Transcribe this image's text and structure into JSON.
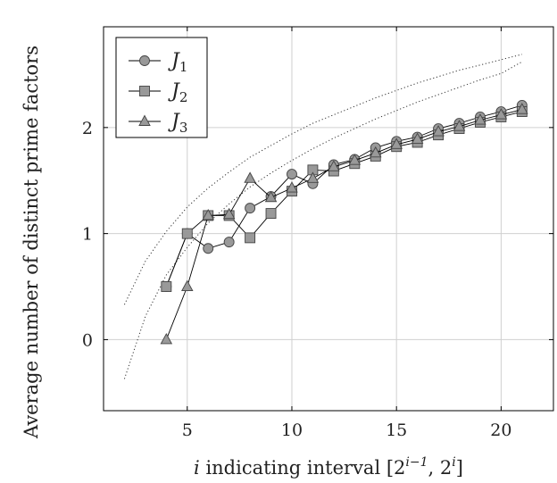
{
  "chart_data": {
    "type": "line",
    "xlabel": {
      "var": "i",
      "text": " indicating interval ",
      "range_open": "[2",
      "exp1": "i−1",
      "mid": ", 2",
      "exp2": "i",
      "range_close": "]"
    },
    "ylabel": "Average number of distinct prime factors",
    "xlim": [
      1,
      22.5
    ],
    "ylim": [
      -0.67,
      2.95
    ],
    "xticks": [
      5,
      10,
      15,
      20
    ],
    "yticks": [
      0,
      1,
      2
    ],
    "grid": true,
    "legend_position": "top-left",
    "series": [
      {
        "name": "J",
        "subscript": "1",
        "marker": "circle",
        "color": "#999999",
        "x": [
          4,
          5,
          6,
          7,
          8,
          9,
          10,
          11,
          12,
          13,
          14,
          15,
          16,
          17,
          18,
          19,
          20,
          21
        ],
        "y": [
          0.5,
          1.0,
          0.86,
          0.92,
          1.24,
          1.35,
          1.56,
          1.47,
          1.65,
          1.7,
          1.81,
          1.87,
          1.91,
          1.99,
          2.04,
          2.1,
          2.15,
          2.21
        ]
      },
      {
        "name": "J",
        "subscript": "2",
        "marker": "square",
        "color": "#999999",
        "x": [
          4,
          5,
          6,
          7,
          8,
          9,
          10,
          11,
          12,
          13,
          14,
          15,
          16,
          17,
          18,
          19,
          20,
          21
        ],
        "y": [
          0.5,
          1.0,
          1.17,
          1.17,
          0.96,
          1.19,
          1.4,
          1.6,
          1.59,
          1.66,
          1.73,
          1.82,
          1.86,
          1.93,
          1.99,
          2.05,
          2.1,
          2.15
        ]
      },
      {
        "name": "J",
        "subscript": "3",
        "marker": "triangle",
        "color": "#999999",
        "x": [
          4,
          5,
          6,
          7,
          8,
          9,
          10,
          11,
          12,
          13,
          14,
          15,
          16,
          17,
          18,
          19,
          20,
          21
        ],
        "y": [
          0.0,
          0.5,
          1.17,
          1.18,
          1.52,
          1.34,
          1.43,
          1.52,
          1.63,
          1.69,
          1.76,
          1.84,
          1.89,
          1.96,
          2.01,
          2.07,
          2.12,
          2.17
        ]
      }
    ],
    "reference_curves": [
      {
        "style": "dotted",
        "x": [
          2,
          3,
          4,
          5,
          6,
          7,
          8,
          9,
          10,
          11,
          12,
          13,
          14,
          15,
          16,
          17,
          18,
          19,
          20,
          21
        ],
        "y": [
          0.33,
          0.74,
          1.02,
          1.25,
          1.43,
          1.58,
          1.72,
          1.83,
          1.94,
          2.04,
          2.12,
          2.2,
          2.28,
          2.35,
          2.42,
          2.48,
          2.54,
          2.59,
          2.64,
          2.69
        ]
      },
      {
        "style": "dotted",
        "x": [
          2,
          3,
          4,
          5,
          6,
          7,
          8,
          9,
          10,
          11,
          12,
          13,
          14,
          15,
          16,
          17,
          18,
          19,
          20,
          21
        ],
        "y": [
          -0.37,
          0.22,
          0.61,
          0.87,
          1.1,
          1.28,
          1.44,
          1.57,
          1.69,
          1.8,
          1.9,
          1.99,
          2.08,
          2.16,
          2.24,
          2.31,
          2.38,
          2.45,
          2.51,
          2.62
        ]
      }
    ]
  }
}
